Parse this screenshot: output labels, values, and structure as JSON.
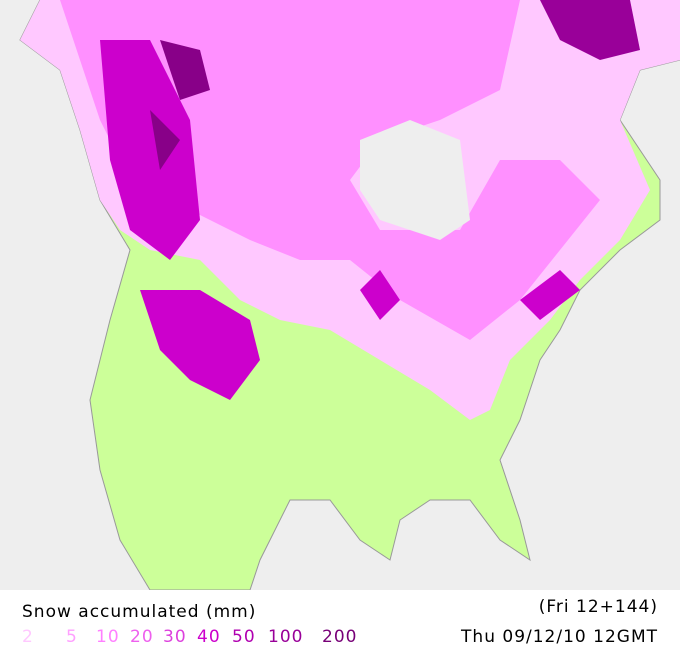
{
  "map": {
    "title": "Snow accumulated (mm)",
    "forecast_step": "(Fri 12+144)",
    "valid_time": "Thu 09/12/10 12GMT",
    "legend": [
      {
        "label": "2",
        "color": "#ffc8ff"
      },
      {
        "label": "5",
        "color": "#ffa0ff"
      },
      {
        "label": "10",
        "color": "#ff80ff"
      },
      {
        "label": "20",
        "color": "#ee60ee"
      },
      {
        "label": "30",
        "color": "#dd40dd"
      },
      {
        "label": "40",
        "color": "#cc00cc"
      },
      {
        "label": "50",
        "color": "#b000b0"
      },
      {
        "label": "100",
        "color": "#990099"
      },
      {
        "label": "200",
        "color": "#770077"
      }
    ]
  }
}
